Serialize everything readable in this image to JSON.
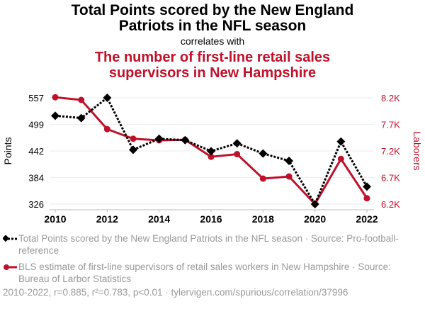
{
  "title": "Total Points scored by the New England Patriots in the NFL season",
  "connector": "correlates with",
  "subtitle": "The number of first-line retail sales supervisors in New Hampshire",
  "chart_data": {
    "type": "line",
    "x": [
      2010,
      2011,
      2012,
      2013,
      2014,
      2015,
      2016,
      2017,
      2018,
      2019,
      2020,
      2021,
      2022
    ],
    "xticks": [
      "2010",
      "2012",
      "2014",
      "2016",
      "2018",
      "2020",
      "2022"
    ],
    "series": [
      {
        "name": "Total Points scored by the New England Patriots in the NFL season · Source: Pro-football-reference",
        "axis": "left",
        "color": "#000000",
        "values": [
          518,
          513,
          557,
          444,
          468,
          465,
          441,
          458,
          436,
          420,
          326,
          462,
          364
        ]
      },
      {
        "name": "BLS estimate of first-line supervisors of retail sales workers in New Hampshire · Source: Bureau of Larbor Statistics",
        "axis": "right",
        "color": "#c0112b",
        "values": [
          8210,
          8160,
          7610,
          7430,
          7400,
          7410,
          7090,
          7140,
          6680,
          6720,
          6200,
          7050,
          6310
        ]
      }
    ],
    "ylabel_left": "Points",
    "ylabel_right": "Laborers",
    "yticks_left": [
      "557",
      "499",
      "442",
      "384",
      "326"
    ],
    "yticks_right": [
      "8.2K",
      "7.7K",
      "7.2K",
      "6.7K",
      "6.2K"
    ],
    "ylim_left": [
      326,
      557
    ],
    "ylim_right": [
      6200,
      8200
    ],
    "grid": true
  },
  "footer": "2010-2022, r=0.885, r²=0.783, p<0.01 · tylervigen.com/spurious/correlation/37996"
}
